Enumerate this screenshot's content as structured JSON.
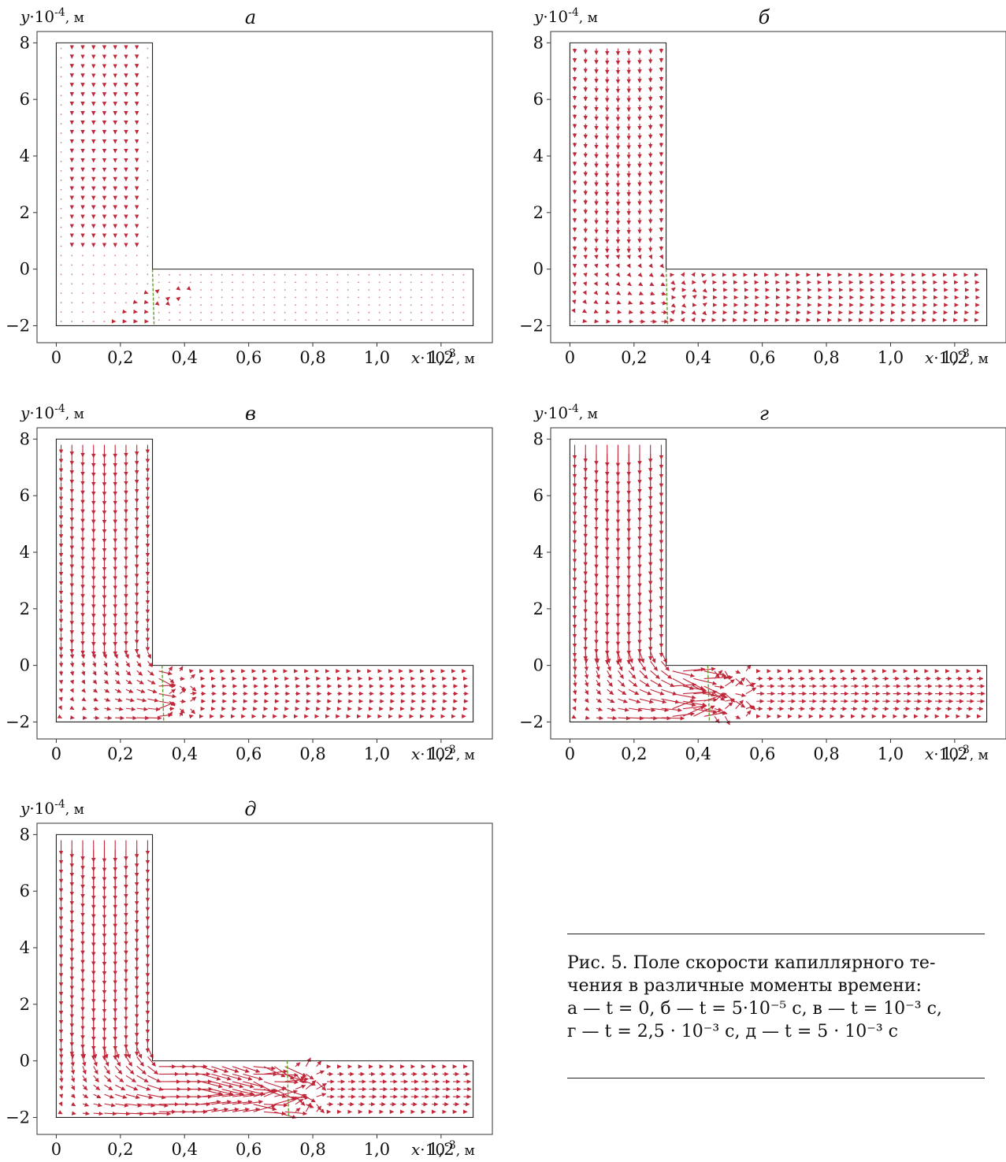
{
  "axes": {
    "y_label_var": "y",
    "y_label_unit": "·10",
    "y_label_exp": "-4",
    "y_label_tail": ", м",
    "x_label_var": "x",
    "x_label_unit": "·10",
    "x_label_exp": "-3",
    "x_label_tail": ", м"
  },
  "chart_data": [
    {
      "type": "vector_field",
      "panel_label": "а",
      "x_ticks": [
        "0",
        "0,2",
        "0,4",
        "0,6",
        "0,8",
        "1,0",
        "1,2"
      ],
      "x_tick_values": [
        0,
        0.2,
        0.4,
        0.6,
        0.8,
        1.0,
        1.2
      ],
      "y_ticks": [
        "−2",
        "0",
        "2",
        "4",
        "6",
        "8"
      ],
      "y_tick_values": [
        -2,
        0,
        2,
        4,
        6,
        8
      ],
      "xlim": [
        -0.06,
        1.36
      ],
      "ylim": [
        -2.6,
        8.4
      ],
      "domain": {
        "vertical_channel": {
          "x": [
            0,
            0.3
          ],
          "y": [
            -2,
            8
          ]
        },
        "horizontal_channel": {
          "x": [
            0.3,
            1.3
          ],
          "y": [
            -2,
            0
          ]
        }
      },
      "interface_x": 0.3,
      "flow_intensity": 0.15,
      "colors": {
        "vectors": "#c0283a",
        "interface": "#5aa02c",
        "frame": "#222222"
      }
    },
    {
      "type": "vector_field",
      "panel_label": "б",
      "x_ticks": [
        "0",
        "0,2",
        "0,4",
        "0,6",
        "0,8",
        "1,0",
        "1,2"
      ],
      "x_tick_values": [
        0,
        0.2,
        0.4,
        0.6,
        0.8,
        1.0,
        1.2
      ],
      "y_ticks": [
        "−2",
        "0",
        "2",
        "4",
        "6",
        "8"
      ],
      "y_tick_values": [
        -2,
        0,
        2,
        4,
        6,
        8
      ],
      "xlim": [
        -0.06,
        1.36
      ],
      "ylim": [
        -2.6,
        8.4
      ],
      "domain": {
        "vertical_channel": {
          "x": [
            0,
            0.3
          ],
          "y": [
            -2,
            8
          ]
        },
        "horizontal_channel": {
          "x": [
            0.3,
            1.3
          ],
          "y": [
            -2,
            0
          ]
        }
      },
      "interface_x": 0.3,
      "flow_intensity": 0.3,
      "colors": {
        "vectors": "#c0283a",
        "interface": "#5aa02c",
        "frame": "#222222"
      }
    },
    {
      "type": "vector_field",
      "panel_label": "в",
      "x_ticks": [
        "0",
        "0,2",
        "0,4",
        "0,6",
        "0,8",
        "1,0",
        "1,2"
      ],
      "x_tick_values": [
        0,
        0.2,
        0.4,
        0.6,
        0.8,
        1.0,
        1.2
      ],
      "y_ticks": [
        "−2",
        "0",
        "2",
        "4",
        "6",
        "8"
      ],
      "y_tick_values": [
        -2,
        0,
        2,
        4,
        6,
        8
      ],
      "xlim": [
        -0.06,
        1.36
      ],
      "ylim": [
        -2.6,
        8.4
      ],
      "domain": {
        "vertical_channel": {
          "x": [
            0,
            0.3
          ],
          "y": [
            -2,
            8
          ]
        },
        "horizontal_channel": {
          "x": [
            0.3,
            1.3
          ],
          "y": [
            -2,
            0
          ]
        }
      },
      "interface_x": 0.33,
      "flow_intensity": 0.6,
      "colors": {
        "vectors": "#c0283a",
        "interface": "#5aa02c",
        "frame": "#222222"
      }
    },
    {
      "type": "vector_field",
      "panel_label": "г",
      "x_ticks": [
        "0",
        "0,2",
        "0,4",
        "0,6",
        "0,8",
        "1,0",
        "1,2"
      ],
      "x_tick_values": [
        0,
        0.2,
        0.4,
        0.6,
        0.8,
        1.0,
        1.2
      ],
      "y_ticks": [
        "−2",
        "0",
        "2",
        "4",
        "6",
        "8"
      ],
      "y_tick_values": [
        -2,
        0,
        2,
        4,
        6,
        8
      ],
      "xlim": [
        -0.06,
        1.36
      ],
      "ylim": [
        -2.6,
        8.4
      ],
      "domain": {
        "vertical_channel": {
          "x": [
            0,
            0.3
          ],
          "y": [
            -2,
            8
          ]
        },
        "horizontal_channel": {
          "x": [
            0.3,
            1.3
          ],
          "y": [
            -2,
            0
          ]
        }
      },
      "interface_x": 0.43,
      "flow_intensity": 1.0,
      "colors": {
        "vectors": "#c0283a",
        "interface": "#5aa02c",
        "frame": "#222222"
      }
    },
    {
      "type": "vector_field",
      "panel_label": "д",
      "x_ticks": [
        "0",
        "0,2",
        "0,4",
        "0,6",
        "0,8",
        "1,0",
        "1,2"
      ],
      "x_tick_values": [
        0,
        0.2,
        0.4,
        0.6,
        0.8,
        1.0,
        1.2
      ],
      "y_ticks": [
        "−2",
        "0",
        "2",
        "4",
        "6",
        "8"
      ],
      "y_tick_values": [
        -2,
        0,
        2,
        4,
        6,
        8
      ],
      "xlim": [
        -0.06,
        1.36
      ],
      "ylim": [
        -2.6,
        8.4
      ],
      "domain": {
        "vertical_channel": {
          "x": [
            0,
            0.3
          ],
          "y": [
            -2,
            8
          ]
        },
        "horizontal_channel": {
          "x": [
            0.3,
            1.3
          ],
          "y": [
            -2,
            0
          ]
        }
      },
      "interface_x": 0.72,
      "flow_intensity": 1.0,
      "colors": {
        "vectors": "#c0283a",
        "interface": "#5aa02c",
        "frame": "#222222"
      }
    }
  ],
  "caption": {
    "line1": "Рис. 5.  Поле скорости капиллярного те-",
    "line2": "чения в различные моменты времени:",
    "line3": "а — t = 0, б — t = 5·10⁻⁵ с, в — t = 10⁻³ с,",
    "line4": "г — t = 2,5 · 10⁻³ с, д — t = 5 · 10⁻³ с"
  }
}
